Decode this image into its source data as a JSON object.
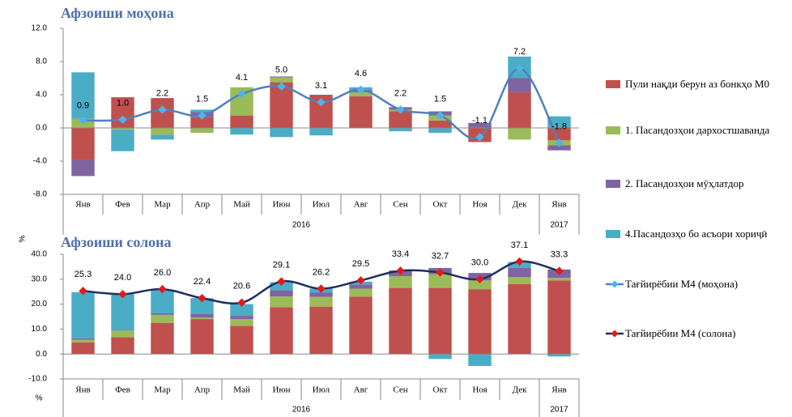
{
  "chart_data": [
    {
      "type": "bar",
      "title": "Афзоиши моҳона",
      "ylabel": "%",
      "categories": [
        "Янв",
        "Фев",
        "Мар",
        "Апр",
        "Май",
        "Июн",
        "Июл",
        "Авг",
        "Сен",
        "Окт",
        "Ноя",
        "Дек",
        "Янв"
      ],
      "x_groups": [
        {
          "label": "2016",
          "count": 12
        },
        {
          "label": "2017",
          "count": 1
        }
      ],
      "ylim": [
        -8,
        12
      ],
      "yticks": [
        {
          "value": -8,
          "label": "-8.0"
        },
        {
          "value": -4,
          "label": "-4.0"
        },
        {
          "value": 0,
          "label": "0.0"
        },
        {
          "value": 4,
          "label": "4.0"
        },
        {
          "value": 8,
          "label": "8.0"
        },
        {
          "value": 12,
          "label": "12.0"
        }
      ],
      "series": [
        {
          "name": "Пули нақди берун аз бонкҳо М0",
          "color": "#c0504d",
          "values": [
            -3.8,
            3.7,
            3.6,
            1.3,
            1.5,
            5.5,
            3.9,
            3.8,
            2.0,
            0.9,
            -1.7,
            4.3,
            -1.5
          ]
        },
        {
          "name": "1. Пасандозҳои дархостшаванда",
          "color": "#9bbb59",
          "values": [
            1.1,
            -0.2,
            -0.8,
            -0.6,
            3.4,
            0.6,
            0,
            0.5,
            0.2,
            0.6,
            0,
            -1.4,
            -0.6
          ]
        },
        {
          "name": "2. Пасандозҳои мӯҳлатдор",
          "color": "#8064a2",
          "values": [
            -2.0,
            0,
            0,
            0.6,
            0,
            0.1,
            0.1,
            0.3,
            0.3,
            0.5,
            0.6,
            1.7,
            -0.6
          ]
        },
        {
          "name": "4.Пасандозҳо бо асъори хориҷӣ",
          "color": "#4bacc6",
          "values": [
            5.6,
            -2.6,
            -0.6,
            0.3,
            -0.8,
            -1.1,
            -0.9,
            0.3,
            -0.4,
            -0.6,
            0,
            2.6,
            1.4
          ]
        },
        {
          "name": "Тағйирёбии М4 (моҳона)",
          "type": "line",
          "color": "#4f81bd",
          "marker_color": "#4fb3e8",
          "values": [
            0.9,
            1.0,
            2.2,
            1.5,
            4.1,
            5.0,
            3.1,
            4.6,
            2.2,
            1.5,
            -1.1,
            7.2,
            -1.8
          ],
          "value_labels": [
            "0.9",
            "1.0",
            "2.2",
            "1.5",
            "4.1",
            "5.0",
            "3.1",
            "4.6",
            "2.2",
            "1.5",
            "-1.1",
            "7.2",
            "-1.8"
          ]
        }
      ]
    },
    {
      "type": "bar",
      "title": "Афзоиши солона",
      "ylabel": "%",
      "categories": [
        "Янв",
        "Фев",
        "Мар",
        "Апр",
        "Май",
        "Июн",
        "Июл",
        "Авг",
        "Сен",
        "Окт",
        "Ноя",
        "Дек",
        "Янв"
      ],
      "x_groups": [
        {
          "label": "2016",
          "count": 12
        },
        {
          "label": "2017",
          "count": 1
        }
      ],
      "ylim": [
        -10,
        40
      ],
      "yticks": [
        {
          "value": -10,
          "label": "-10.0"
        },
        {
          "value": 0,
          "label": "0.0"
        },
        {
          "value": 10,
          "label": "10.0"
        },
        {
          "value": 20,
          "label": "20.0"
        },
        {
          "value": 30,
          "label": "30.0"
        },
        {
          "value": 40,
          "label": "40.0"
        }
      ],
      "series": [
        {
          "color": "#c0504d",
          "values": [
            4.7,
            6.7,
            12.5,
            14.0,
            11.3,
            18.8,
            19.0,
            23.0,
            26.5,
            26.5,
            26.0,
            28.0,
            29.5
          ]
        },
        {
          "color": "#9bbb59",
          "values": [
            1.0,
            2.7,
            3.2,
            0.6,
            2.7,
            4.3,
            3.9,
            3.2,
            4.7,
            5.5,
            3.5,
            2.8,
            1.0
          ]
        },
        {
          "color": "#8064a2",
          "values": [
            0.6,
            0.3,
            0.6,
            1.5,
            1.3,
            2.5,
            1.8,
            1.6,
            2.3,
            2.5,
            3.0,
            3.7,
            3.4
          ]
        },
        {
          "color": "#4bacc6",
          "values": [
            18.5,
            14.3,
            9.5,
            6.3,
            4.7,
            3.2,
            1.5,
            1.2,
            0,
            -2.0,
            -4.8,
            2.4,
            -1.0
          ]
        },
        {
          "name": "Тағйирёбии М4 (солона)",
          "type": "line",
          "color": "#1f2f5f",
          "marker_color": "#e31a1c",
          "values": [
            25.3,
            24.0,
            26.0,
            22.4,
            20.6,
            29.1,
            26.2,
            29.5,
            33.4,
            32.7,
            30.0,
            37.1,
            33.3
          ],
          "value_labels": [
            "25.3",
            "24.0",
            "26.0",
            "22.4",
            "20.6",
            "29.1",
            "26.2",
            "29.5",
            "33.4",
            "32.7",
            "30.0",
            "37.1",
            "33.3"
          ]
        }
      ]
    }
  ]
}
